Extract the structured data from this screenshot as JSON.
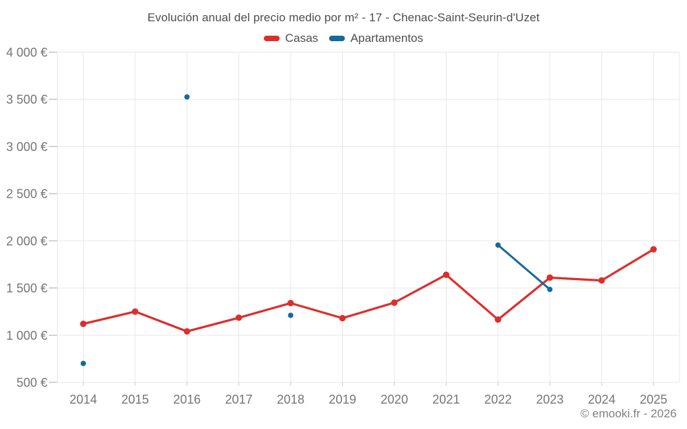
{
  "chart": {
    "title": "Evolución anual del precio medio por m² - 17 - Chenac-Saint-Seurin-d'Uzet",
    "footer": "© emooki.fr - 2026"
  },
  "chart_data": {
    "type": "line",
    "title": "Evolución anual del precio medio por m² - 17 - Chenac-Saint-Seurin-d'Uzet",
    "categories": [
      "2014",
      "2015",
      "2016",
      "2017",
      "2018",
      "2019",
      "2020",
      "2021",
      "2022",
      "2023",
      "2024",
      "2025"
    ],
    "series": [
      {
        "name": "Casas",
        "color": "#dc2e2e",
        "values": [
          1120,
          1250,
          1040,
          1185,
          1340,
          1180,
          1345,
          1640,
          1165,
          1610,
          1580,
          1910
        ]
      },
      {
        "name": "Apartamentos",
        "color": "#17699c",
        "values": [
          700,
          null,
          3525,
          null,
          1210,
          null,
          null,
          null,
          1955,
          1485,
          null,
          null
        ]
      }
    ],
    "xlabel": "",
    "ylabel": "",
    "ylim": [
      500,
      4000
    ],
    "yticks": [
      500,
      1000,
      1500,
      2000,
      2500,
      3000,
      3500,
      4000
    ],
    "ytick_labels": [
      "500 €",
      "1 000 €",
      "1 500 €",
      "2 000 €",
      "2 500 €",
      "3 000 €",
      "3 500 €",
      "4 000 €"
    ],
    "grid": true,
    "legend_position": "top",
    "currency_suffix": "€"
  }
}
